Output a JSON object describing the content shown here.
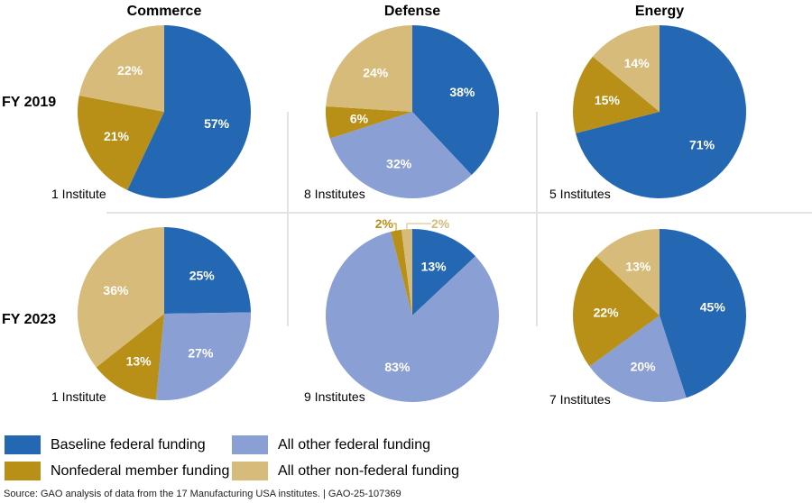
{
  "chart_data": [
    {
      "type": "pie",
      "department": "Commerce",
      "year": "FY 2019",
      "institutes": "1 Institute",
      "values": [
        57,
        0,
        21,
        22
      ],
      "labels": [
        "57%",
        "",
        "21%",
        "22%"
      ]
    },
    {
      "type": "pie",
      "department": "Defense",
      "year": "FY 2019",
      "institutes": "8 Institutes",
      "values": [
        38,
        32,
        6,
        24
      ],
      "labels": [
        "38%",
        "32%",
        "6%",
        "24%"
      ]
    },
    {
      "type": "pie",
      "department": "Energy",
      "year": "FY 2019",
      "institutes": "5 Institutes",
      "values": [
        71,
        0,
        15,
        14
      ],
      "labels": [
        "71%",
        "",
        "15%",
        "14%"
      ]
    },
    {
      "type": "pie",
      "department": "Commerce",
      "year": "FY 2023",
      "institutes": "1 Institute",
      "values": [
        25,
        27,
        13,
        36
      ],
      "labels": [
        "25%",
        "27%",
        "13%",
        "36%"
      ]
    },
    {
      "type": "pie",
      "department": "Defense",
      "year": "FY 2023",
      "institutes": "9 Institutes",
      "values": [
        13,
        83,
        2,
        2
      ],
      "labels": [
        "13%",
        "83%",
        "2%",
        "2%"
      ]
    },
    {
      "type": "pie",
      "department": "Energy",
      "year": "FY 2023",
      "institutes": "7 Institutes",
      "values": [
        45,
        20,
        22,
        13
      ],
      "labels": [
        "45%",
        "20%",
        "22%",
        "13%"
      ]
    }
  ],
  "columns": [
    "Commerce",
    "Defense",
    "Energy"
  ],
  "rows": [
    "FY 2019",
    "FY 2023"
  ],
  "legend": [
    {
      "name": "Baseline federal funding",
      "color": "#2467b3"
    },
    {
      "name": "All other federal funding",
      "color": "#8a9fd3"
    },
    {
      "name": "Nonfederal member funding",
      "color": "#b88f17"
    },
    {
      "name": "All other non-federal funding",
      "color": "#d6bb7b"
    }
  ],
  "source": "Source: GAO analysis of data from the 17 Manufacturing USA institutes.  |  GAO-25-107369"
}
